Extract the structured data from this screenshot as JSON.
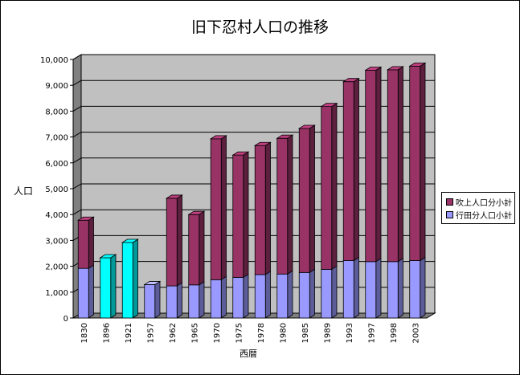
{
  "chart_data": {
    "type": "bar",
    "stacked": true,
    "title": "旧下忍村人口の推移",
    "xlabel": "西暦",
    "ylabel": "人口",
    "ylim": [
      0,
      10000
    ],
    "y_ticks": [
      "0",
      "1,000",
      "2,000",
      "3,000",
      "4,000",
      "5,000",
      "6,000",
      "7,000",
      "8,000",
      "9,000",
      "10,000"
    ],
    "y_tick_values": [
      0,
      1000,
      2000,
      3000,
      4000,
      5000,
      6000,
      7000,
      8000,
      9000,
      10000
    ],
    "grid": true,
    "legend_position": "right",
    "categories": [
      "1830",
      "1896",
      "1921",
      "1957",
      "1962",
      "1965",
      "1970",
      "1975",
      "1978",
      "1980",
      "1985",
      "1989",
      "1993",
      "1997",
      "1998",
      "2003"
    ],
    "series": [
      {
        "name": "行田分人口小計",
        "color": "#9999ff",
        "values": [
          1920,
          2330,
          2920,
          1290,
          1240,
          1280,
          1480,
          1570,
          1680,
          1700,
          1760,
          1880,
          2220,
          2180,
          2180,
          2220
        ]
      },
      {
        "name": "吹上人口分小計",
        "color": "#993366",
        "values": [
          1860,
          0,
          0,
          0,
          3390,
          2720,
          5450,
          4730,
          4990,
          5250,
          5570,
          6300,
          6920,
          7400,
          7420,
          7520
        ]
      }
    ],
    "highlight_color": "#00ffff",
    "highlight_categories": [
      "1896",
      "1921"
    ]
  },
  "colors": {
    "plot_background": "#c0c0c0",
    "plot_side": "#808080",
    "floor": "#808080",
    "grid": "#000000"
  }
}
